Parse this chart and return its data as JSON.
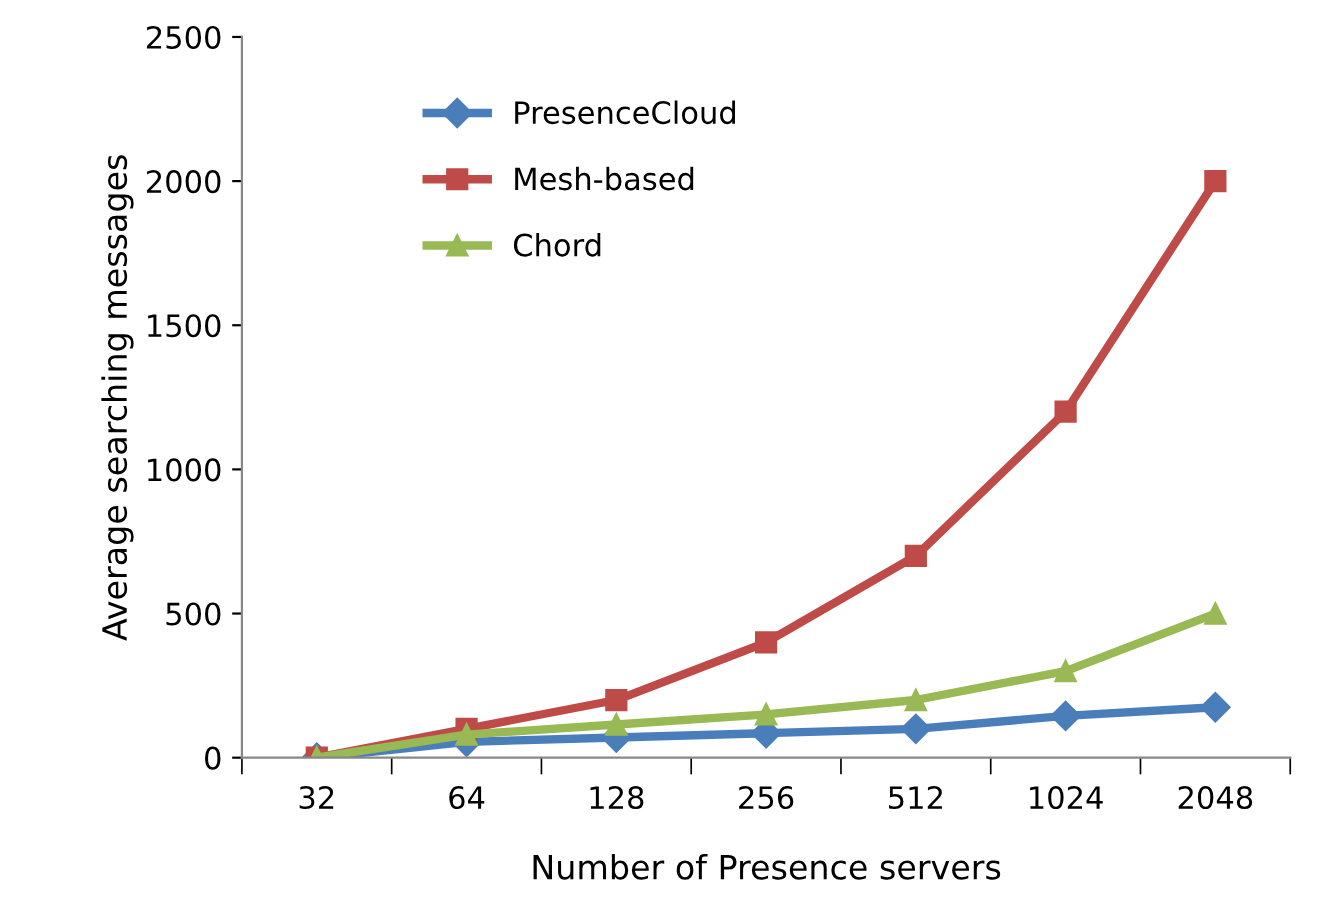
{
  "chart_data": {
    "type": "line",
    "xlabel": "Number of Presence servers",
    "ylabel": "Average searching messages",
    "categories": [
      "32",
      "64",
      "128",
      "256",
      "512",
      "1024",
      "2048"
    ],
    "series": [
      {
        "name": "PresenceCloud",
        "color": "#4a7ebb",
        "marker": "diamond",
        "values": [
          0,
          55,
          70,
          85,
          100,
          145,
          175
        ]
      },
      {
        "name": "Mesh-based",
        "color": "#be4b48",
        "marker": "square",
        "values": [
          0,
          100,
          200,
          400,
          700,
          1200,
          2000
        ]
      },
      {
        "name": "Chord",
        "color": "#98b954",
        "marker": "triangle",
        "values": [
          0,
          80,
          115,
          150,
          200,
          300,
          500
        ]
      }
    ],
    "ylim": [
      0,
      2500
    ],
    "yticks": [
      0,
      500,
      1000,
      1500,
      2000,
      2500
    ],
    "grid": false,
    "legend": "top left",
    "line_style": "solid"
  }
}
